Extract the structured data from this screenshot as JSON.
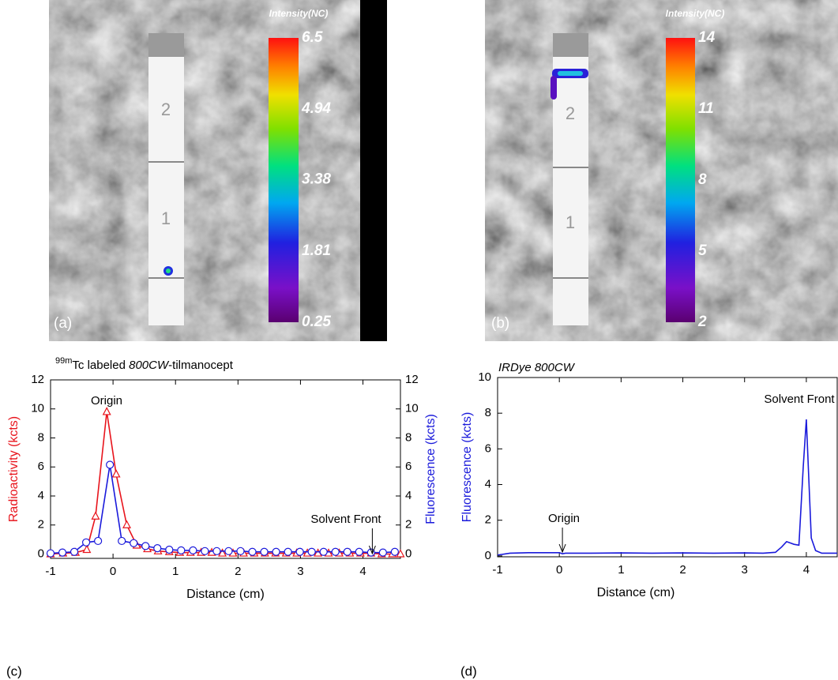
{
  "panels": [
    {
      "label": "(a)",
      "strip_labels": [
        "2",
        "1"
      ],
      "colorbar": {
        "title": "Intensity(NC)",
        "lim": [
          0.25,
          6.5
        ],
        "ticks": [
          6.5,
          4.94,
          3.38,
          1.81,
          0.25
        ]
      }
    },
    {
      "label": "(b)",
      "strip_labels": [
        "2",
        "1"
      ],
      "colorbar": {
        "title": "Intensity(NC)",
        "lim": [
          2,
          14
        ],
        "ticks": [
          14,
          11,
          8,
          5,
          2
        ]
      }
    }
  ],
  "chart_data": [
    {
      "type": "line",
      "panel_label": "(c)",
      "title": [
        "99m",
        "Tc labeled ",
        "800CW",
        "-tilmanocept"
      ],
      "xlabel": "Distance (cm)",
      "ylabel": "Radioactivity (kcts)",
      "y2label": "Fluorescence (kcts)",
      "xlim": [
        -1,
        4.6
      ],
      "xticks": [
        -1,
        0,
        1,
        2,
        3,
        4
      ],
      "ylim": [
        -0.3,
        12
      ],
      "yticks": [
        0,
        2,
        4,
        6,
        8,
        10,
        12
      ],
      "y2lim": [
        -0.3,
        12
      ],
      "y2ticks": [
        0,
        2,
        4,
        6,
        8,
        10,
        12
      ],
      "annotations": [
        "Origin",
        "Solvent Front"
      ],
      "series": [
        {
          "color": "#e8141c",
          "marker": "triangle",
          "x": [
            -1,
            -0.8,
            -0.6,
            -0.42,
            -0.28,
            -0.1,
            0.05,
            0.22,
            0.38,
            0.55,
            0.72,
            0.9,
            1.07,
            1.24,
            1.41,
            1.58,
            1.75,
            1.92,
            2.09,
            2.26,
            2.43,
            2.6,
            2.77,
            2.94,
            3.11,
            3.28,
            3.45,
            3.62,
            3.79,
            3.96,
            4.13,
            4.3,
            4.47,
            4.6
          ],
          "values": [
            0,
            0.05,
            0.1,
            0.3,
            2.6,
            9.8,
            5.5,
            2.0,
            0.6,
            0.35,
            0.2,
            0.15,
            0.1,
            0.1,
            0.1,
            0.1,
            0.05,
            0.05,
            0.05,
            0.05,
            0.05,
            0.05,
            0.05,
            0.05,
            0.05,
            0.05,
            0.05,
            0.05,
            0.05,
            0.05,
            0.05,
            0,
            0,
            0
          ]
        },
        {
          "color": "#1a1adb",
          "marker": "circle",
          "axis": "y2",
          "x": [
            -1,
            -0.81,
            -0.62,
            -0.43,
            -0.24,
            -0.05,
            0.14,
            0.33,
            0.52,
            0.71,
            0.9,
            1.09,
            1.28,
            1.47,
            1.66,
            1.85,
            2.04,
            2.23,
            2.42,
            2.61,
            2.8,
            2.99,
            3.18,
            3.37,
            3.56,
            3.75,
            3.94,
            4.13,
            4.32,
            4.51
          ],
          "values": [
            0.05,
            0.1,
            0.15,
            0.8,
            0.9,
            6.15,
            0.9,
            0.75,
            0.55,
            0.4,
            0.3,
            0.25,
            0.25,
            0.2,
            0.2,
            0.2,
            0.2,
            0.15,
            0.15,
            0.15,
            0.15,
            0.15,
            0.15,
            0.15,
            0.15,
            0.15,
            0.15,
            0.1,
            0.1,
            0.15
          ]
        }
      ]
    },
    {
      "type": "line",
      "panel_label": "(d)",
      "title": "IRDye 800CW",
      "xlabel": "Distance (cm)",
      "ylabel": "Fluorescence (kcts)",
      "xlim": [
        -1,
        4.5
      ],
      "xticks": [
        -1,
        0,
        1,
        2,
        3,
        4
      ],
      "ylim": [
        -0.05,
        10
      ],
      "yticks": [
        0,
        2,
        4,
        6,
        8,
        10
      ],
      "annotations": [
        "Origin",
        "Solvent Front"
      ],
      "series": [
        {
          "color": "#1a1adb",
          "x": [
            -1,
            -0.8,
            -0.5,
            0,
            0.05,
            0.1,
            0.2,
            0.5,
            1,
            1.5,
            2,
            2.5,
            3,
            3.3,
            3.5,
            3.6,
            3.68,
            3.8,
            3.88,
            3.95,
            4.0,
            4.08,
            4.15,
            4.25,
            4.5
          ],
          "values": [
            0.05,
            0.15,
            0.18,
            0.18,
            0.12,
            0.15,
            0.15,
            0.15,
            0.17,
            0.15,
            0.17,
            0.15,
            0.17,
            0.15,
            0.2,
            0.5,
            0.8,
            0.65,
            0.6,
            5,
            7.65,
            1.0,
            0.3,
            0.15,
            0.15
          ]
        }
      ]
    }
  ]
}
